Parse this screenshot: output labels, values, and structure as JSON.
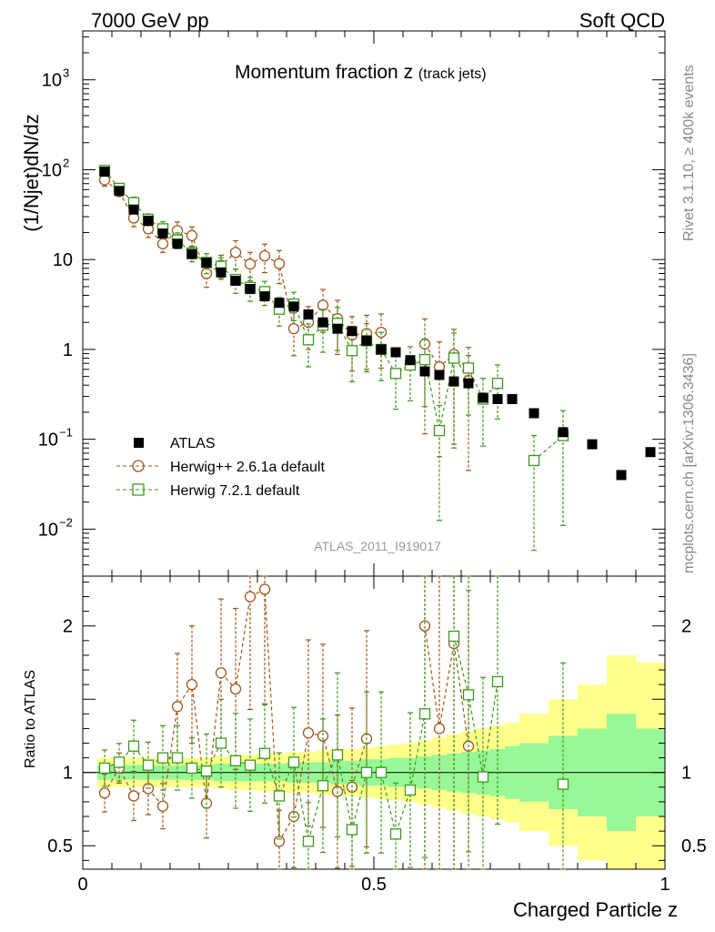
{
  "header": {
    "left": "7000 GeV pp",
    "right": "Soft QCD"
  },
  "side_labels": {
    "top": "Rivet 3.1.10, ≥ 400k events",
    "bottom": "mcplots.cern.ch [arXiv:1306.3436]"
  },
  "chart_data": {
    "type": "scatter",
    "title_main": "Momentum fraction z",
    "title_sub": "(track jets)",
    "ylabel": "(1/Njet)dN/dz",
    "ylabel_ratio": "Ratio to ATLAS",
    "xlabel": "Charged Particle z",
    "watermark": "ATLAS_2011_I919017",
    "x_range": [
      0,
      1
    ],
    "y_log_range": [
      0.003,
      3500
    ],
    "ratio_range": [
      0.34,
      2.34
    ],
    "x_ticks": [
      "0",
      "0.5",
      "1"
    ],
    "y_ticks": [
      "10^-2",
      "10^-1",
      "1",
      "10",
      "10^2",
      "10^3"
    ],
    "ratio_ticks": [
      "0.5",
      "1",
      "2"
    ],
    "legend": [
      "ATLAS",
      "Herwig++ 2.6.1a default",
      "Herwig 7.2.1 default"
    ],
    "z": [
      0.0375,
      0.0625,
      0.0875,
      0.1125,
      0.1375,
      0.1625,
      0.1875,
      0.2125,
      0.2375,
      0.2625,
      0.2875,
      0.3125,
      0.3375,
      0.3625,
      0.3875,
      0.4125,
      0.4375,
      0.4625,
      0.4875,
      0.5125,
      0.5375,
      0.5625,
      0.5875,
      0.6125,
      0.6375,
      0.6625,
      0.6875,
      0.7125,
      0.7375,
      0.775,
      0.825,
      0.875,
      0.925,
      0.975
    ],
    "series": [
      {
        "name": "ATLAS",
        "values": [
          95,
          58,
          36,
          27,
          19.5,
          15,
          11.5,
          9.2,
          7.2,
          5.8,
          4.7,
          3.9,
          3.3,
          3.0,
          2.45,
          2.0,
          1.7,
          1.6,
          1.25,
          1.0,
          0.93,
          0.76,
          0.57,
          0.52,
          0.44,
          0.42,
          0.29,
          0.28,
          0.28,
          0.195,
          0.12,
          0.088,
          0.04,
          0.072
        ]
      },
      {
        "name": "Herwig++ 2.6.1a default",
        "values": [
          77,
          57,
          29,
          22,
          15,
          21,
          18.5,
          7.0,
          8.6,
          12,
          8.9,
          11,
          9.0,
          1.7,
          2.0,
          3.1,
          2.2,
          1.45,
          1.5,
          1.55,
          null,
          null,
          1.15,
          0.64,
          0.88,
          0.45,
          null,
          null,
          null,
          null,
          null,
          null,
          null,
          null
        ],
        "err": [
          0.15,
          0.1,
          0.2,
          0.2,
          0.2,
          0.25,
          0.25,
          0.3,
          0.3,
          0.35,
          0.35,
          0.35,
          0.4,
          0.5,
          0.5,
          0.5,
          0.6,
          0.6,
          0.6,
          0.6,
          null,
          null,
          0.9,
          0.9,
          0.9,
          0.9,
          null,
          null,
          null,
          null,
          null,
          null,
          null,
          null
        ]
      },
      {
        "name": "Herwig 7.2.1 default",
        "values": [
          98,
          62,
          43,
          28,
          22,
          16.5,
          11.8,
          9.3,
          8.4,
          6.0,
          4.9,
          4.4,
          2.8,
          3.2,
          1.28,
          1.86,
          1.95,
          0.97,
          1.25,
          1.0,
          0.54,
          0.67,
          0.77,
          0.125,
          0.8,
          0.62,
          0.28,
          0.42,
          null,
          0.058,
          0.11,
          null,
          null,
          null
        ],
        "err": [
          0.12,
          0.12,
          0.15,
          0.15,
          0.2,
          0.2,
          0.2,
          0.25,
          0.25,
          0.3,
          0.3,
          0.3,
          0.35,
          0.35,
          0.5,
          0.5,
          0.5,
          0.55,
          0.55,
          0.55,
          0.6,
          0.6,
          0.7,
          0.9,
          0.9,
          0.7,
          0.7,
          0.6,
          null,
          0.9,
          0.9,
          null,
          null,
          null
        ]
      }
    ],
    "ratios": {
      "herwig_pp": [
        0.86,
        1.03,
        0.84,
        0.89,
        0.77,
        1.45,
        1.6,
        0.79,
        1.68,
        1.57,
        2.2,
        2.25,
        0.53,
        0.7,
        1.27,
        1.25,
        0.87,
        0.9,
        1.23,
        null,
        null,
        null,
        2.0,
        1.3,
        1.88,
        1.18,
        null,
        null,
        null,
        null,
        null,
        null,
        null,
        null
      ],
      "herwig7": [
        1.03,
        1.07,
        1.18,
        1.05,
        1.1,
        1.1,
        1.03,
        1.01,
        1.2,
        1.08,
        1.05,
        1.13,
        0.84,
        1.07,
        0.53,
        0.91,
        1.12,
        0.61,
        1.0,
        1.0,
        0.58,
        0.88,
        1.4,
        null,
        1.93,
        1.53,
        0.97,
        1.62,
        null,
        null,
        0.92,
        null,
        null,
        null
      ]
    },
    "bands": {
      "edges": [
        0.025,
        0.05,
        0.075,
        0.1,
        0.125,
        0.15,
        0.175,
        0.2,
        0.225,
        0.25,
        0.275,
        0.3,
        0.325,
        0.35,
        0.375,
        0.4,
        0.425,
        0.45,
        0.475,
        0.5,
        0.525,
        0.55,
        0.575,
        0.6,
        0.625,
        0.65,
        0.675,
        0.7,
        0.725,
        0.75,
        0.8,
        0.85,
        0.9,
        0.95,
        1.0
      ],
      "green": [
        0.05,
        0.05,
        0.05,
        0.05,
        0.05,
        0.05,
        0.05,
        0.05,
        0.06,
        0.06,
        0.06,
        0.06,
        0.06,
        0.07,
        0.07,
        0.07,
        0.08,
        0.08,
        0.09,
        0.09,
        0.1,
        0.1,
        0.11,
        0.12,
        0.13,
        0.14,
        0.15,
        0.16,
        0.18,
        0.2,
        0.25,
        0.3,
        0.4,
        0.3,
        0.35
      ],
      "yellow": [
        0.1,
        0.1,
        0.1,
        0.1,
        0.1,
        0.1,
        0.1,
        0.1,
        0.11,
        0.12,
        0.12,
        0.13,
        0.13,
        0.14,
        0.14,
        0.15,
        0.16,
        0.16,
        0.17,
        0.18,
        0.19,
        0.2,
        0.22,
        0.24,
        0.26,
        0.28,
        0.3,
        0.32,
        0.34,
        0.4,
        0.5,
        0.6,
        0.8,
        0.75,
        0.75
      ]
    }
  }
}
